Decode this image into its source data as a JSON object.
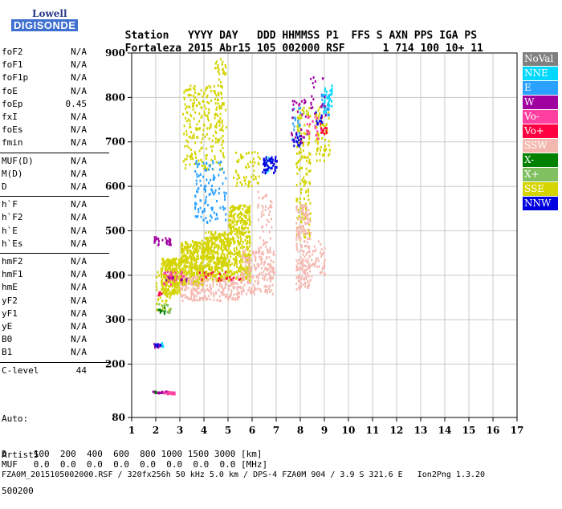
{
  "logo": {
    "top": "Lowell",
    "bottom": "DIGISONDE"
  },
  "header": {
    "labels": [
      "Station",
      "YYYY",
      "DAY",
      "DDD",
      "HHMMSS",
      "P1",
      "FFS",
      "S",
      "AXN",
      "PPS",
      "IGA",
      "PS"
    ],
    "values": [
      "Fortaleza",
      "2015",
      "Abr15",
      "105",
      "002000",
      "RSF",
      "",
      "1",
      "714",
      "100",
      "10+",
      "11"
    ]
  },
  "params": [
    [
      {
        "name": "foF2",
        "value": "N/A"
      },
      {
        "name": "foF1",
        "value": "N/A"
      },
      {
        "name": "foF1p",
        "value": "N/A"
      },
      {
        "name": "foE",
        "value": "N/A"
      },
      {
        "name": "foEp",
        "value": "0.45"
      },
      {
        "name": "fxI",
        "value": "N/A"
      },
      {
        "name": "foEs",
        "value": "N/A"
      },
      {
        "name": "fmin",
        "value": "N/A"
      }
    ],
    [
      {
        "name": "MUF(D)",
        "value": "N/A"
      },
      {
        "name": "M(D)",
        "value": "N/A"
      },
      {
        "name": "D",
        "value": "N/A"
      }
    ],
    [
      {
        "name": "h`F",
        "value": "N/A"
      },
      {
        "name": "h`F2",
        "value": "N/A"
      },
      {
        "name": "h`E",
        "value": "N/A"
      },
      {
        "name": "h`Es",
        "value": "N/A"
      }
    ],
    [
      {
        "name": "hmF2",
        "value": "N/A"
      },
      {
        "name": "hmF1",
        "value": "N/A"
      },
      {
        "name": "hmE",
        "value": "N/A"
      },
      {
        "name": "yF2",
        "value": "N/A"
      },
      {
        "name": "yF1",
        "value": "N/A"
      },
      {
        "name": "yE",
        "value": "N/A"
      },
      {
        "name": "B0",
        "value": "N/A"
      },
      {
        "name": "B1",
        "value": "N/A"
      }
    ],
    [
      {
        "name": "C-level",
        "value": "44"
      }
    ]
  ],
  "auto": [
    "Auto:",
    "Artist5",
    "500200"
  ],
  "legend": [
    {
      "label": "NoVal",
      "color": "#808080"
    },
    {
      "label": "NNE",
      "color": "#00d8ff"
    },
    {
      "label": "E",
      "color": "#2aa0ff"
    },
    {
      "label": "W",
      "color": "#a000a0"
    },
    {
      "label": "Vo-",
      "color": "#ff40a0"
    },
    {
      "label": "Vo+",
      "color": "#ff0040"
    },
    {
      "label": "SSW",
      "color": "#f4b8b0"
    },
    {
      "label": "X-",
      "color": "#008000"
    },
    {
      "label": "X+",
      "color": "#80c060"
    },
    {
      "label": "SSE",
      "color": "#d4d400"
    },
    {
      "label": "NNW",
      "color": "#0000e0"
    }
  ],
  "footer": {
    "d_line": "D     100  200  400  600  800 1000 1500 3000 [km]",
    "muf_line": "MUF   0.0  0.0  0.0  0.0  0.0  0.0  0.0  0.0 [MHz]",
    "file_line": "FZA0M_2015105002000.RSF / 320fx256h 50 kHz 5.0 km / DPS-4 FZA0M 904 / 3.9 S 321.6 E   Ion2Png 1.3.20"
  },
  "chart_data": {
    "type": "scatter",
    "xlim": [
      1,
      17
    ],
    "ylim": [
      80,
      900
    ],
    "xticks": [
      1,
      2,
      3,
      4,
      5,
      6,
      7,
      8,
      9,
      10,
      11,
      12,
      13,
      14,
      15,
      16,
      17
    ],
    "yticks": [
      80,
      200,
      300,
      400,
      500,
      600,
      700,
      800,
      900
    ],
    "grid": true,
    "legend_position": "right",
    "series": [
      {
        "name": "SSE",
        "color": "#d4d400",
        "regions": [
          [
            2.2,
            3.0,
            360,
            440,
            260
          ],
          [
            3.0,
            4.0,
            380,
            480,
            380
          ],
          [
            4.0,
            5.0,
            390,
            500,
            380
          ],
          [
            5.0,
            5.9,
            390,
            560,
            360
          ],
          [
            3.1,
            4.8,
            640,
            830,
            220
          ],
          [
            4.4,
            4.9,
            700,
            890,
            60
          ],
          [
            5.2,
            6.3,
            600,
            680,
            60
          ],
          [
            7.8,
            8.4,
            480,
            780,
            160
          ],
          [
            8.6,
            9.2,
            660,
            780,
            70
          ],
          [
            2.0,
            2.6,
            320,
            440,
            60
          ]
        ]
      },
      {
        "name": "SSW",
        "color": "#f4b8b0",
        "regions": [
          [
            3.0,
            5.5,
            345,
            400,
            220
          ],
          [
            5.5,
            6.9,
            360,
            460,
            200
          ],
          [
            6.2,
            6.8,
            460,
            590,
            50
          ],
          [
            7.8,
            8.4,
            370,
            560,
            200
          ],
          [
            8.4,
            9.0,
            400,
            480,
            40
          ]
        ]
      },
      {
        "name": "E",
        "color": "#2aa0ff",
        "regions": [
          [
            3.6,
            4.9,
            520,
            660,
            120
          ],
          [
            8.8,
            9.2,
            760,
            810,
            30
          ],
          [
            7.6,
            8.0,
            700,
            780,
            20
          ]
        ]
      },
      {
        "name": "NNE",
        "color": "#00d8ff",
        "regions": [
          [
            8.9,
            9.3,
            770,
            830,
            30
          ],
          [
            6.5,
            6.8,
            630,
            670,
            10
          ],
          [
            2.2,
            2.3,
            240,
            250,
            6
          ]
        ]
      },
      {
        "name": "W",
        "color": "#a000a0",
        "regions": [
          [
            1.9,
            2.6,
            470,
            490,
            25
          ],
          [
            7.6,
            8.3,
            700,
            800,
            30
          ],
          [
            8.4,
            9.1,
            760,
            850,
            20
          ],
          [
            1.8,
            2.5,
            137,
            141,
            20
          ],
          [
            1.9,
            2.2,
            240,
            248,
            10
          ],
          [
            2.4,
            3.3,
            390,
            400,
            15
          ]
        ]
      },
      {
        "name": "Vo-",
        "color": "#ff40a0",
        "regions": [
          [
            2.2,
            3.2,
            380,
            410,
            25
          ],
          [
            2.3,
            2.8,
            135,
            140,
            18
          ],
          [
            8.2,
            9.0,
            700,
            760,
            20
          ]
        ]
      },
      {
        "name": "Vo+",
        "color": "#ff0040",
        "regions": [
          [
            3.7,
            5.5,
            390,
            410,
            20
          ],
          [
            8.8,
            9.1,
            720,
            760,
            12
          ],
          [
            2.0,
            2.3,
            355,
            365,
            5
          ]
        ]
      },
      {
        "name": "X-",
        "color": "#008000",
        "regions": [
          [
            2.0,
            2.4,
            315,
            330,
            10
          ],
          [
            1.9,
            2.1,
            137,
            141,
            4
          ]
        ]
      },
      {
        "name": "X+",
        "color": "#80c060",
        "regions": [
          [
            2.1,
            2.6,
            318,
            340,
            12
          ]
        ]
      },
      {
        "name": "NNW",
        "color": "#0000e0",
        "regions": [
          [
            6.4,
            7.0,
            630,
            670,
            50
          ],
          [
            7.7,
            8.0,
            690,
            720,
            15
          ],
          [
            8.6,
            8.9,
            740,
            770,
            10
          ],
          [
            1.9,
            2.3,
            240,
            248,
            8
          ]
        ]
      }
    ]
  }
}
